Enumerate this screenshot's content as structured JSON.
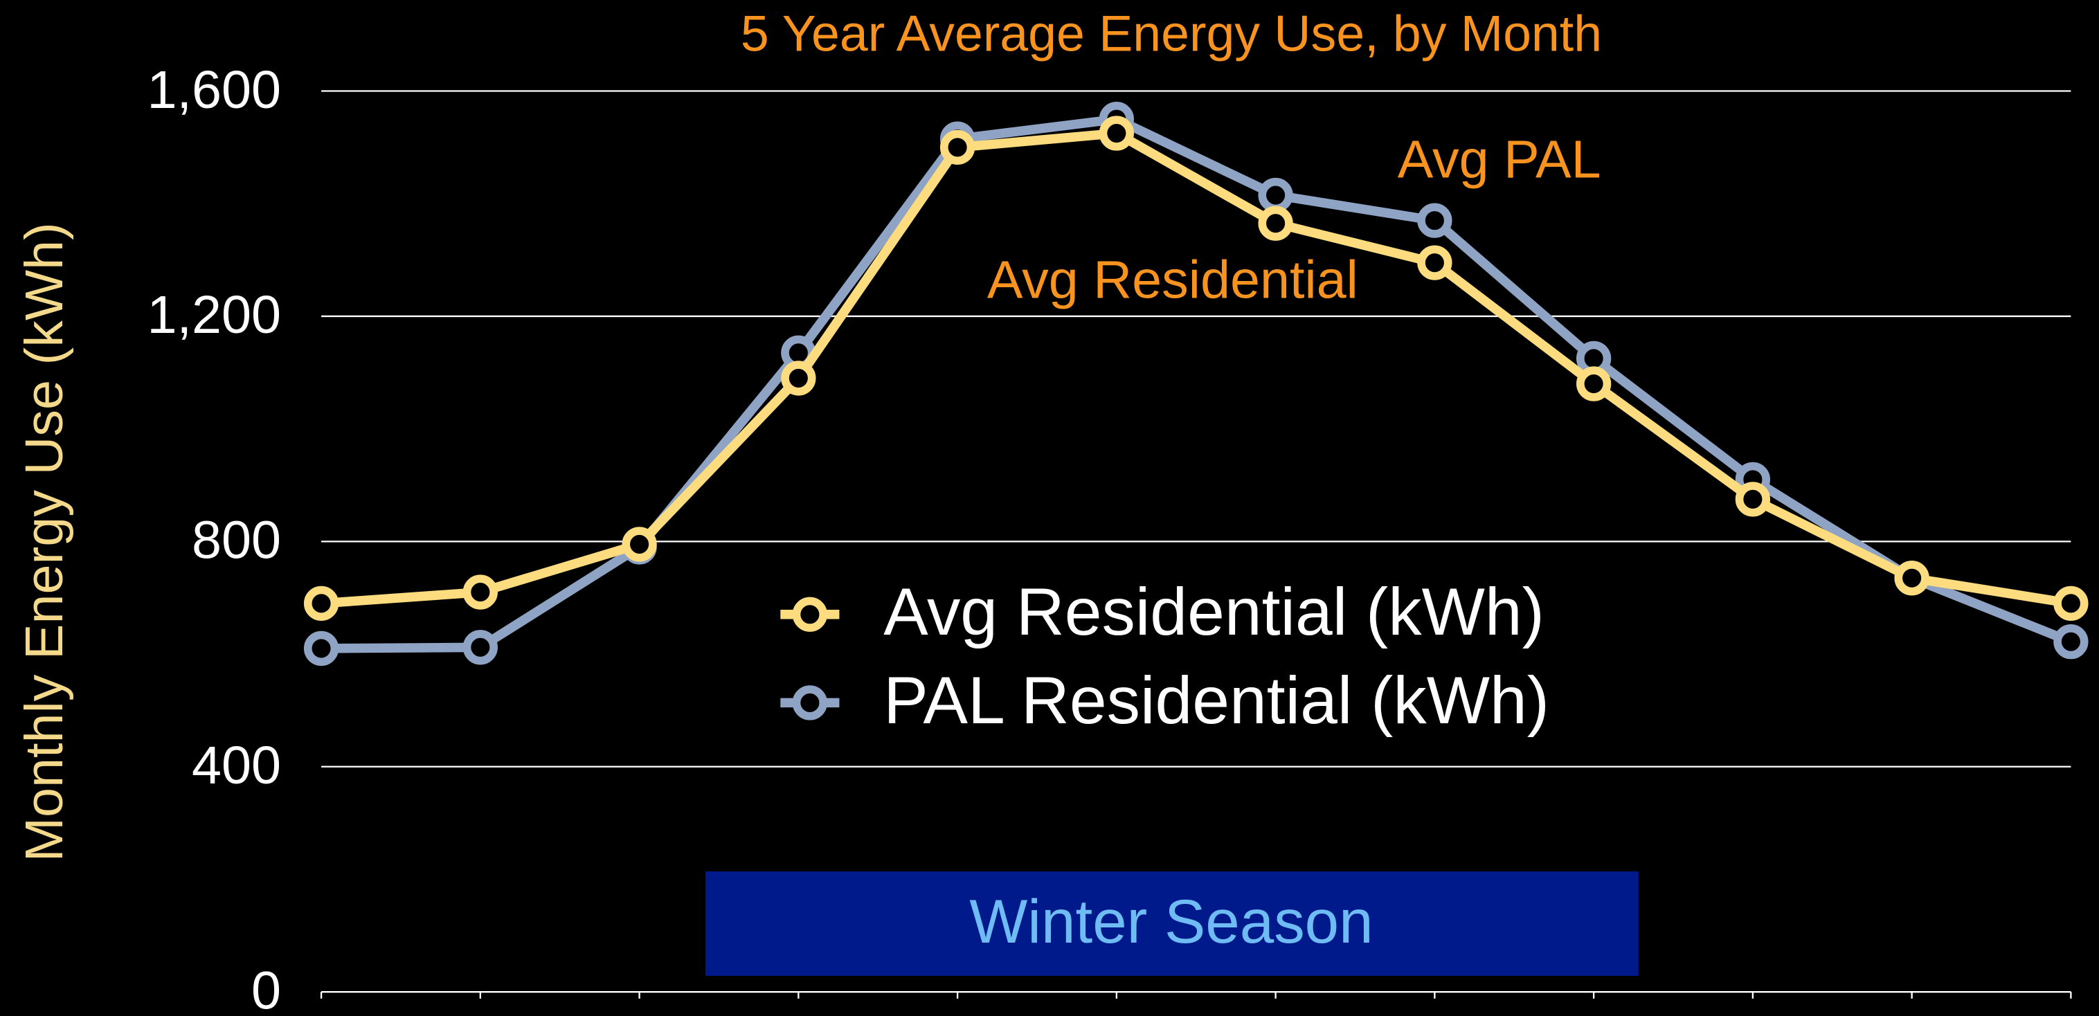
{
  "chart_data": {
    "type": "line",
    "title": "5 Year Average Energy Use, by Month",
    "y_label": "Monthly Energy Use (kWh)",
    "categories": [
      null,
      null,
      null,
      null,
      null,
      null,
      null,
      null,
      null,
      null,
      null,
      null
    ],
    "series": [
      {
        "name": "Avg Residential (kWh)",
        "color": "#fcdc7f",
        "values": [
          690,
          710,
          795,
          1090,
          1500,
          1525,
          1365,
          1295,
          1080,
          875,
          735,
          690
        ]
      },
      {
        "name": "PAL Residential (kWh)",
        "color": "#8fa3c4",
        "values": [
          610,
          612,
          790,
          1135,
          1515,
          1550,
          1415,
          1370,
          1125,
          910,
          735,
          622
        ]
      }
    ],
    "ylim": [
      0,
      1600
    ],
    "yticks": [
      0,
      400,
      800,
      {
        "value": 1200,
        "label": "1,200"
      },
      {
        "value": 1600,
        "label": "1,600"
      }
    ],
    "grid": true,
    "legend": "center",
    "annotations": [
      "Avg PAL",
      "Avg Residential",
      "Winter Season"
    ]
  }
}
